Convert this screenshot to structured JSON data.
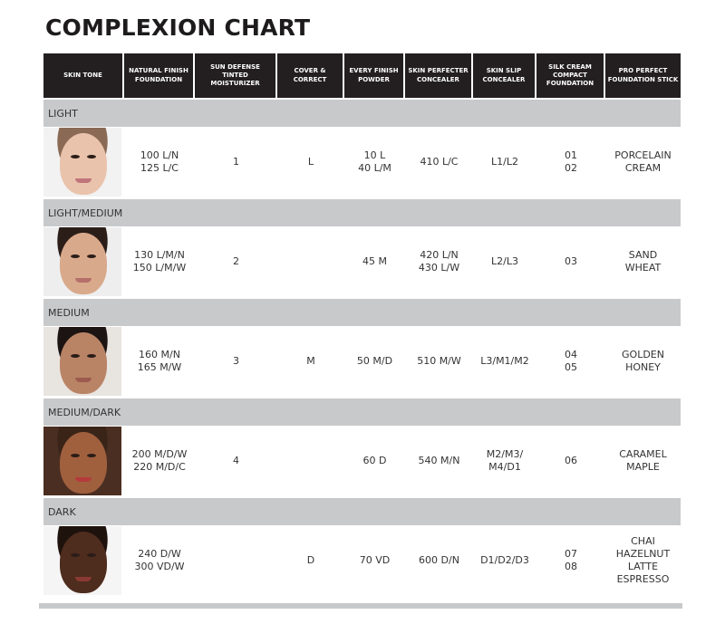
{
  "title": "COMPLEXION CHART",
  "columns": [
    "SKIN TONE",
    "NATURAL FINISH\nFOUNDATION",
    "SUN DEFENSE\nTINTED MOISTURIZER",
    "COVER &\nCORRECT",
    "EVERY FINISH\nPOWDER",
    "SKIN PERFECTER\nCONCEALER",
    "SKIN SLIP\nCONCEALER",
    "SILK CREAM\nCOMPACT\nFOUNDATION",
    "PRO PERFECT\nFOUNDATION STICK"
  ],
  "groups": [
    {
      "label": "LIGHT",
      "bg": "#f2f2f2",
      "skin": "#eac3ac",
      "hair": "#8a6a55",
      "lip": "#c0757a",
      "cells": [
        "100 L/N\n125 L/C",
        "1",
        "L",
        "10 L\n40 L/M",
        "410 L/C",
        "L1/L2",
        "01\n02",
        "PORCELAIN\nCREAM"
      ]
    },
    {
      "label": "LIGHT/MEDIUM",
      "bg": "#eeeeee",
      "skin": "#d9a98b",
      "hair": "#2b1e19",
      "lip": "#b5706a",
      "cells": [
        "130 L/M/N\n150 L/M/W",
        "2",
        "",
        "45 M",
        "420 L/N\n430 L/W",
        "L2/L3",
        "03",
        "SAND\nWHEAT"
      ]
    },
    {
      "label": "MEDIUM",
      "bg": "#e8e4e0",
      "skin": "#b98466",
      "hair": "#1c1412",
      "lip": "#9c5a4e",
      "cells": [
        "160 M/N\n165 M/W",
        "3",
        "M",
        "50 M/D",
        "510 M/W",
        "L3/M1/M2",
        "04\n05",
        "GOLDEN\nHONEY"
      ]
    },
    {
      "label": "MEDIUM/DARK",
      "bg": "#4a2e22",
      "skin": "#a0603e",
      "hair": "#3a2418",
      "lip": "#b53b3b",
      "cells": [
        "200 M/D/W\n220 M/D/C",
        "4",
        "",
        "60 D",
        "540 M/N",
        "M2/M3/\nM4/D1",
        "06",
        "CARAMEL\nMAPLE"
      ]
    },
    {
      "label": "DARK",
      "bg": "#f5f5f5",
      "skin": "#4e2c1e",
      "hair": "#1e120d",
      "lip": "#8a3a33",
      "cells": [
        "240 D/W\n300 VD/W",
        "",
        "D",
        "70 VD",
        "600 D/N",
        "D1/D2/D3",
        "07\n08",
        "CHAI\nHAZELNUT\nLATTE\nESPRESSO"
      ]
    }
  ]
}
